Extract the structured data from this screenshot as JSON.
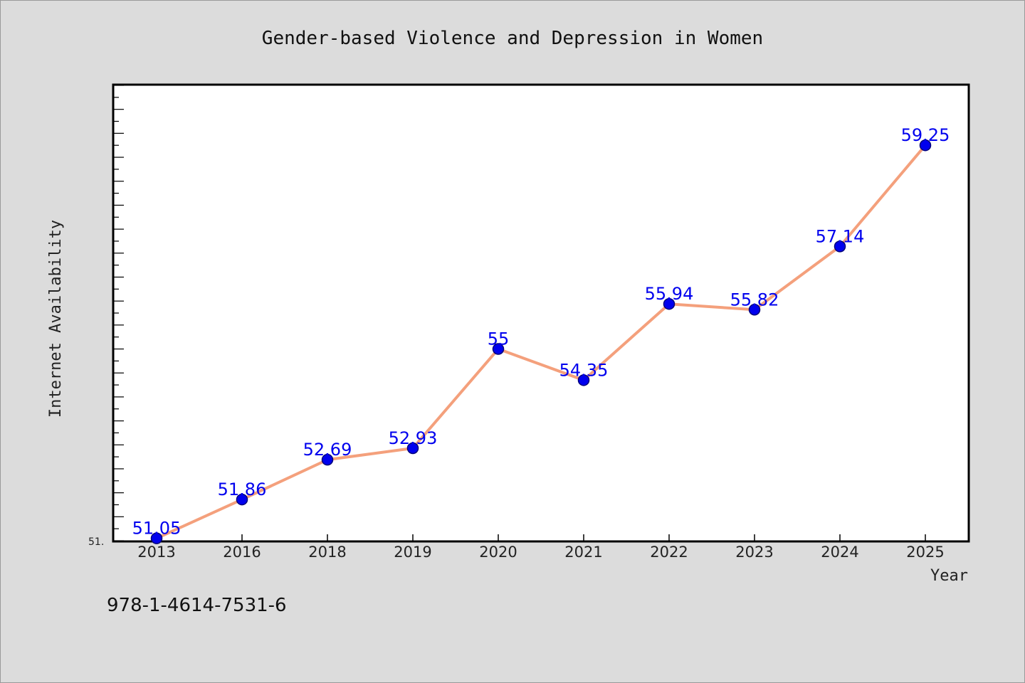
{
  "chart_data": {
    "type": "line",
    "title": "Gender-based Violence and Depression in Women",
    "xlabel": "Year",
    "ylabel": "Internet Availability",
    "categories": [
      "2013",
      "2016",
      "2018",
      "2019",
      "2020",
      "2021",
      "2022",
      "2023",
      "2024",
      "2025"
    ],
    "series": [
      {
        "values": [
          51.05,
          51.86,
          52.69,
          52.93,
          55,
          54.35,
          55.94,
          55.82,
          57.14,
          59.25
        ],
        "data_labels": [
          "51.05",
          "51.86",
          "52.69",
          "52.93",
          "55",
          "54.35",
          "55.94",
          "55.82",
          "57.14",
          "59.25"
        ]
      }
    ],
    "ylim": [
      51,
      60.5
    ],
    "y_tick_labels": [
      "51."
    ],
    "grid": false,
    "colors": {
      "line": "#f4a07c",
      "marker": "#0000ee",
      "marker_edge": "#00007a",
      "data_label": "#0000ee",
      "plot_background": "#ffffff",
      "figure_background": "#dcdcdc"
    }
  },
  "footer": {
    "isbn": "978-1-4614-7531-6"
  }
}
